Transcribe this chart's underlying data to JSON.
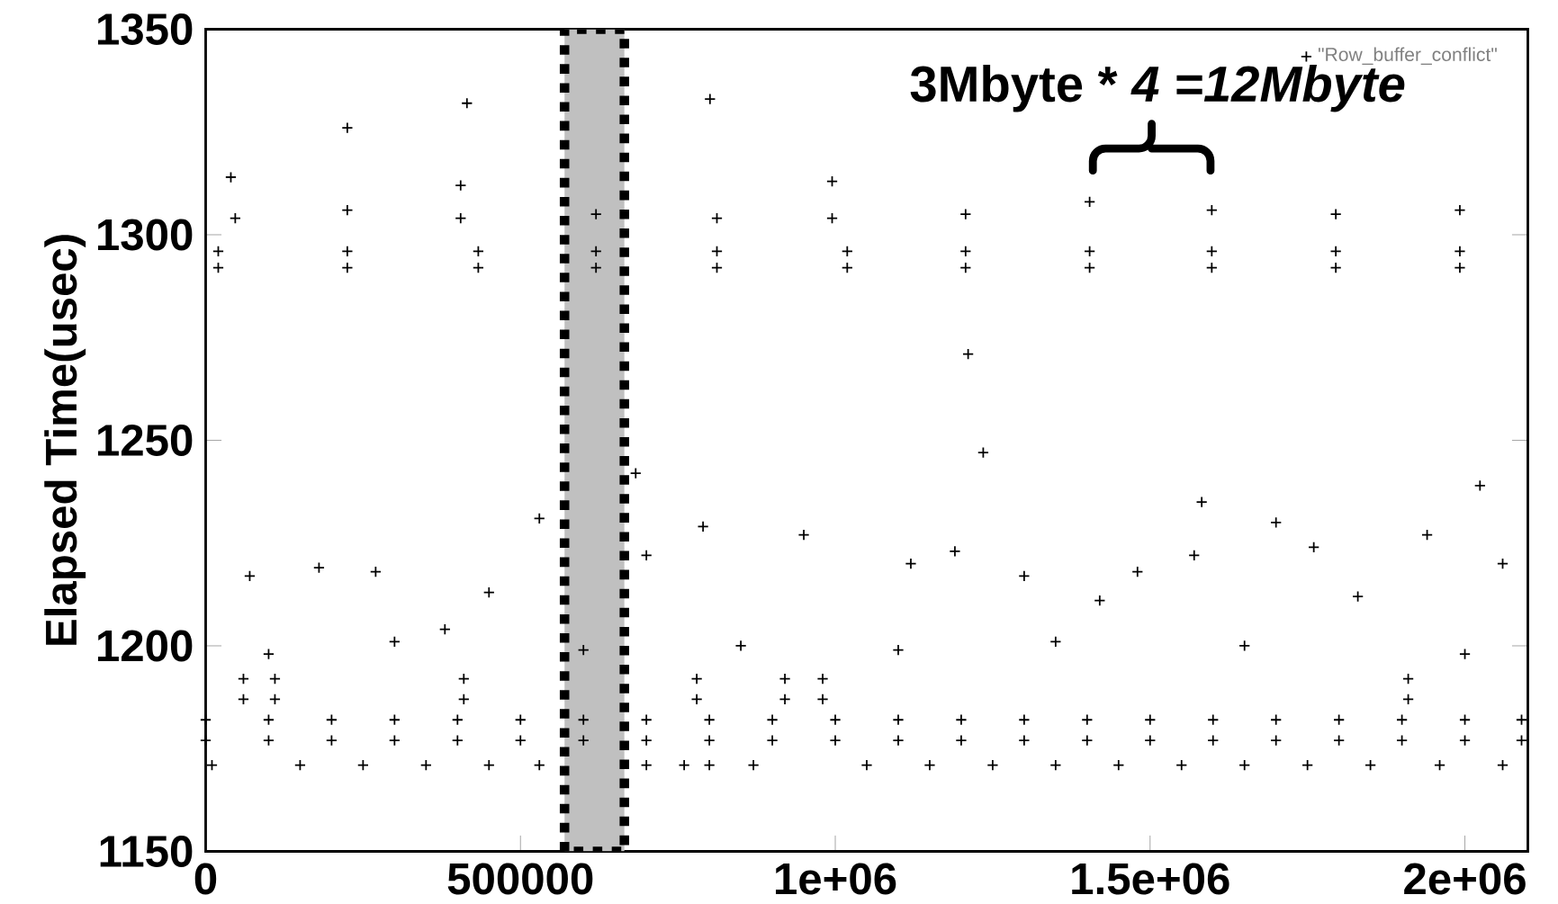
{
  "chart_data": {
    "type": "scatter",
    "ylabel": "Elapsed Time(usec)",
    "annotations": [
      "3Mbyte * *4 =12Mbyte*"
    ],
    "xlim": [
      0,
      2100000
    ],
    "ylim": [
      1150,
      1350
    ],
    "xticks": [
      0,
      500000,
      {
        "value": 1000000,
        "label": "1e+06"
      },
      {
        "value": 1500000,
        "label": "1.5e+06"
      },
      {
        "value": 2000000,
        "label": "2e+06"
      }
    ],
    "yticks": [
      1150,
      1200,
      1250,
      1300,
      1350
    ],
    "grid": false,
    "legend": "top right",
    "marker": "cross",
    "bands": [
      {
        "axis": "x",
        "from": 570000,
        "to": 665000,
        "color": "#c0c0c0"
      }
    ],
    "series": [
      {
        "name": "\"Row_buffer_conflict\"",
        "color": "#000000",
        "x": [
          20000,
          20000,
          47000,
          40000,
          225000,
          225000,
          225000,
          405000,
          405000,
          433000,
          433000,
          620000,
          620000,
          620000,
          812000,
          812000,
          812000,
          995000,
          995000,
          1019000,
          1019000,
          1207000,
          1207000,
          1207000,
          1404000,
          1404000,
          1404000,
          1598000,
          1598000,
          1598000,
          1795000,
          1795000,
          1795000,
          1992000,
          1992000,
          1992000,
          225000,
          415000,
          801000,
          1211000,
          1235000,
          1582000,
          2024000,
          683000,
          70000,
          180000,
          270000,
          380000,
          450000,
          530000,
          700000,
          790000,
          950000,
          1120000,
          1190000,
          1300000,
          1420000,
          1480000,
          1570000,
          1700000,
          1760000,
          1830000,
          1940000,
          2060000,
          100000,
          300000,
          600000,
          850000,
          1100000,
          1350000,
          1650000,
          2000000,
          60000,
          60000,
          110000,
          110000,
          410000,
          410000,
          780000,
          780000,
          920000,
          920000,
          980000,
          980000,
          1910000,
          1910000,
          0,
          0,
          100000,
          100000,
          200000,
          200000,
          300000,
          300000,
          400000,
          400000,
          500000,
          500000,
          600000,
          600000,
          700000,
          700000,
          800000,
          800000,
          900000,
          900000,
          1000000,
          1000000,
          1100000,
          1100000,
          1200000,
          1200000,
          1300000,
          1300000,
          1400000,
          1400000,
          1500000,
          1500000,
          1600000,
          1600000,
          1700000,
          1700000,
          1800000,
          1800000,
          1900000,
          1900000,
          2000000,
          2000000,
          2090000,
          2090000,
          10000,
          150000,
          250000,
          350000,
          450000,
          530000,
          700000,
          760000,
          800000,
          870000,
          1050000,
          1150000,
          1250000,
          1350000,
          1450000,
          1550000,
          1650000,
          1750000,
          1850000,
          1960000,
          2060000
        ],
        "values": [
          1292,
          1296,
          1304,
          1314,
          1292,
          1296,
          1306,
          1304,
          1312,
          1292,
          1296,
          1292,
          1296,
          1305,
          1292,
          1296,
          1304,
          1304,
          1313,
          1292,
          1296,
          1292,
          1296,
          1305,
          1292,
          1296,
          1308,
          1292,
          1296,
          1306,
          1292,
          1296,
          1305,
          1292,
          1296,
          1306,
          1326,
          1332,
          1333,
          1271,
          1247,
          1235,
          1239,
          1242,
          1217,
          1219,
          1218,
          1204,
          1213,
          1231,
          1222,
          1229,
          1227,
          1220,
          1223,
          1217,
          1211,
          1218,
          1222,
          1230,
          1224,
          1212,
          1227,
          1220,
          1198,
          1201,
          1199,
          1200,
          1199,
          1201,
          1200,
          1198,
          1187,
          1192,
          1187,
          1192,
          1187,
          1192,
          1187,
          1192,
          1187,
          1192,
          1187,
          1192,
          1187,
          1192,
          1177,
          1182,
          1177,
          1182,
          1177,
          1182,
          1177,
          1182,
          1177,
          1182,
          1177,
          1182,
          1177,
          1182,
          1177,
          1182,
          1177,
          1182,
          1177,
          1182,
          1177,
          1182,
          1177,
          1182,
          1177,
          1182,
          1177,
          1182,
          1177,
          1182,
          1177,
          1182,
          1177,
          1182,
          1177,
          1182,
          1177,
          1182,
          1177,
          1182,
          1177,
          1182,
          1177,
          1182,
          1171,
          1171,
          1171,
          1171,
          1171,
          1171,
          1171,
          1171,
          1171,
          1171,
          1171,
          1171,
          1171,
          1171,
          1171,
          1171,
          1171,
          1171,
          1171,
          1171,
          1171
        ]
      }
    ]
  }
}
